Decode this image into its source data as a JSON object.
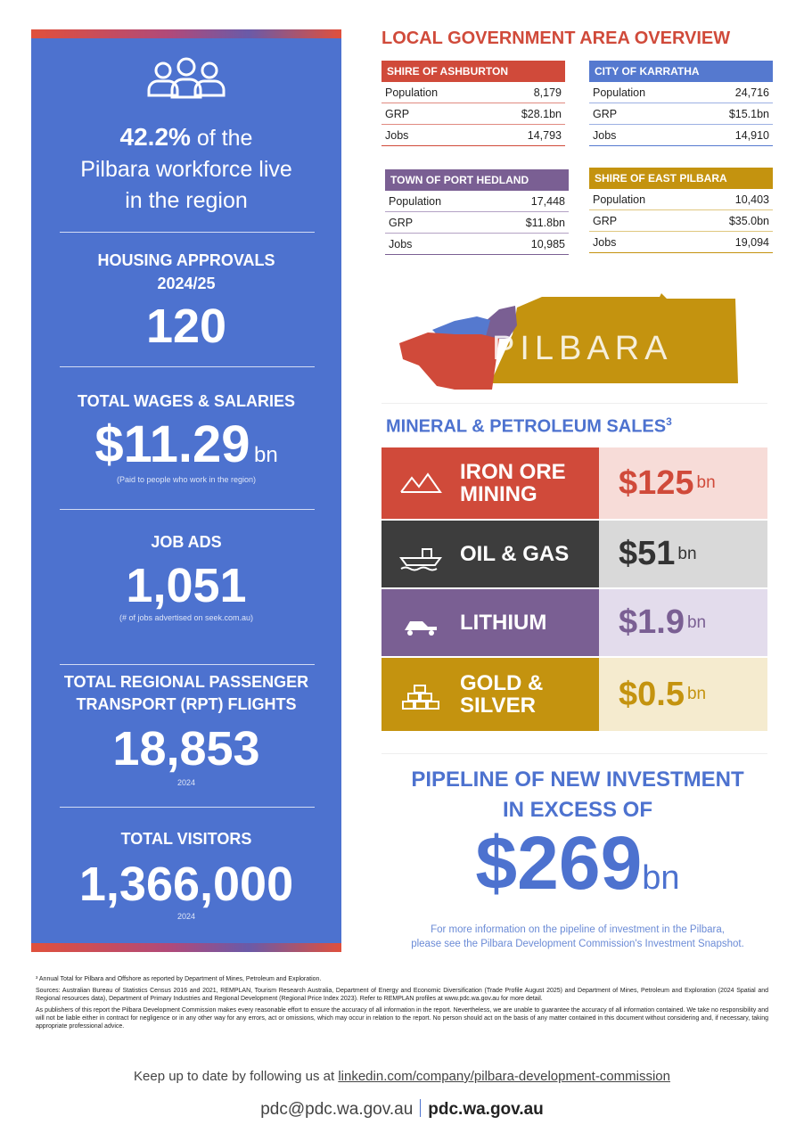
{
  "left_panel": {
    "workforce": {
      "value": "42.2%",
      "lines": [
        "of the",
        "Pilbara workforce live",
        "in the region"
      ]
    },
    "housing": {
      "label_lines": [
        "HOUSING APPROVALS",
        "2024/25"
      ],
      "value": "120"
    },
    "wages": {
      "label": "TOTAL WAGES & SALARIES",
      "value": "$11.29",
      "unit": "bn",
      "note": "(Paid to people who work in the region)"
    },
    "job_ads": {
      "label": "JOB ADS",
      "value": "1,051",
      "note": "(# of jobs advertised on seek.com.au)"
    },
    "flights": {
      "label_lines": [
        "TOTAL REGIONAL PASSENGER",
        "TRANSPORT (RPT) FLIGHTS"
      ],
      "value": "18,853",
      "note": "2024"
    },
    "visitors": {
      "label": "TOTAL VISITORS",
      "value": "1,366,000",
      "note": "2024"
    }
  },
  "lga": {
    "title": "LOCAL GOVERNMENT AREA OVERVIEW",
    "areas": [
      {
        "name": "SHIRE OF ASHBURTON",
        "rows": [
          [
            "Population",
            "8,179"
          ],
          [
            "GRP",
            "$28.1bn"
          ],
          [
            "Jobs",
            "14,793"
          ]
        ]
      },
      {
        "name": "CITY OF KARRATHA",
        "rows": [
          [
            "Population",
            "24,716"
          ],
          [
            "GRP",
            "$15.1bn"
          ],
          [
            "Jobs",
            "14,910"
          ]
        ]
      },
      {
        "name": "TOWN OF PORT HEDLAND",
        "rows": [
          [
            "Population",
            "17,448"
          ],
          [
            "GRP",
            "$11.8bn"
          ],
          [
            "Jobs",
            "10,985"
          ]
        ]
      },
      {
        "name": "SHIRE OF EAST PILBARA",
        "rows": [
          [
            "Population",
            "10,403"
          ],
          [
            "GRP",
            "$35.0bn"
          ],
          [
            "Jobs",
            "19,094"
          ]
        ]
      }
    ]
  },
  "map": {
    "label": "PILBARA"
  },
  "sales": {
    "title": "MINERAL & PETROLEUM SALES",
    "footnote_mark": "3",
    "items": [
      {
        "name": "IRON ORE MINING",
        "value": "$125",
        "unit": "bn"
      },
      {
        "name": "OIL & GAS",
        "value": "$51",
        "unit": "bn"
      },
      {
        "name": "LITHIUM",
        "value": "$1.9",
        "unit": "bn"
      },
      {
        "name": "GOLD & SILVER",
        "value": "$0.5",
        "unit": "bn"
      }
    ]
  },
  "pipeline": {
    "title_lines": [
      "PIPELINE OF NEW INVESTMENT",
      "IN EXCESS OF"
    ],
    "value": "$269",
    "unit": "bn",
    "note_lines": [
      "For more information on the pipeline of investment in the Pilbara,",
      "please see the Pilbara Development Commission's Investment Snapshot."
    ]
  },
  "footnotes": [
    "³ Annual Total for Pilbara and Offshore as reported by Department of Mines, Petroleum and Exploration.",
    "Sources: Australian Bureau of Statistics Census 2016 and 2021, REMPLAN, Tourism Research Australia, Department of Energy and Economic Diversification (Trade Profile August 2025) and Department of Mines, Petroleum and Exploration (2024 Spatial and Regional resources data), Department of Primary Industries and Regional Development (Regional Price Index 2023). Refer to REMPLAN profiles at www.pdc.wa.gov.au for more detail.",
    "As publishers of this report the Pilbara Development Commission makes every reasonable effort to ensure the accuracy of all information in the report. Nevertheless, we are unable to guarantee the accuracy of all information contained. We take no responsibility and will not be liable either in contract for negligence or in any other way for any errors, act or omissions, which may occur in relation to the report. No person should act on the basis of any matter contained in this document without considering and, if necessary, taking appropriate professional advice."
  ],
  "footer": {
    "follow_text": "Keep up to date by following us at",
    "link": "linkedin.com/company/pilbara-development-commission",
    "email": "pdc@pdc.wa.gov.au",
    "website": "pdc.wa.gov.au"
  }
}
